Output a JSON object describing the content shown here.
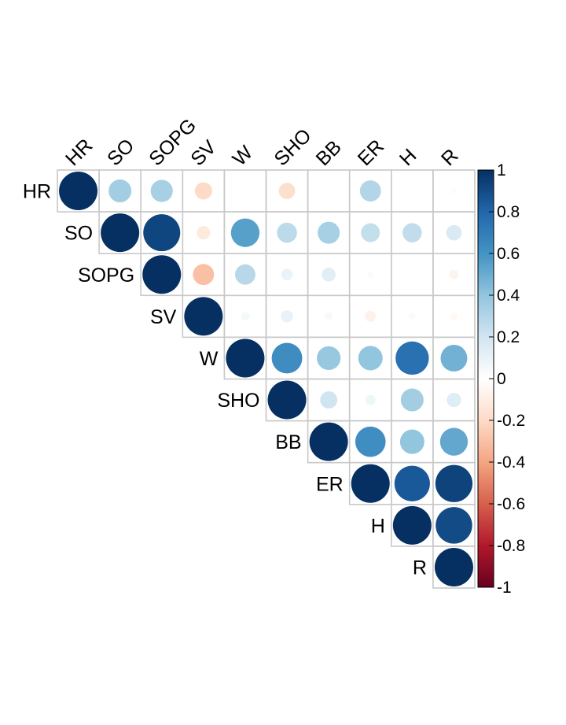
{
  "chart_data": {
    "type": "heatmap",
    "style": "correlation matrix, upper triangle, circles sized and colored by correlation",
    "variables": [
      "HR",
      "SO",
      "SOPG",
      "SV",
      "W",
      "SHO",
      "BB",
      "ER",
      "H",
      "R"
    ],
    "matrix": [
      [
        1.0,
        0.35,
        0.33,
        -0.2,
        0.0,
        -0.18,
        0.0,
        0.3,
        0.0,
        -0.02
      ],
      [
        null,
        1.0,
        0.92,
        -0.12,
        0.55,
        0.27,
        0.33,
        0.24,
        0.25,
        0.16
      ],
      [
        null,
        null,
        1.0,
        -0.3,
        0.28,
        0.09,
        0.13,
        -0.03,
        0.0,
        -0.06
      ],
      [
        null,
        null,
        null,
        1.0,
        0.05,
        0.1,
        0.04,
        -0.08,
        0.03,
        -0.04
      ],
      [
        null,
        null,
        null,
        null,
        1.0,
        0.63,
        0.38,
        0.4,
        0.75,
        0.48
      ],
      [
        null,
        null,
        null,
        null,
        null,
        1.0,
        0.2,
        0.07,
        0.35,
        0.14
      ],
      [
        null,
        null,
        null,
        null,
        null,
        null,
        1.0,
        0.62,
        0.4,
        0.52
      ],
      [
        null,
        null,
        null,
        null,
        null,
        null,
        null,
        1.0,
        0.85,
        0.93
      ],
      [
        null,
        null,
        null,
        null,
        null,
        null,
        null,
        null,
        1.0,
        0.9
      ],
      [
        null,
        null,
        null,
        null,
        null,
        null,
        null,
        null,
        null,
        1.0
      ]
    ],
    "colorbar": {
      "range": [
        -1,
        1
      ],
      "ticks": [
        "1",
        "0.8",
        "0.6",
        "0.4",
        "0.2",
        "0",
        "-0.2",
        "-0.4",
        "-0.6",
        "-0.8",
        "-1"
      ],
      "colors": [
        "#67001F",
        "#B2182B",
        "#D6604D",
        "#F4A582",
        "#FDDBC7",
        "#FFFFFF",
        "#D1E5F0",
        "#92C5DE",
        "#4393C3",
        "#2166AC",
        "#053061"
      ]
    }
  }
}
